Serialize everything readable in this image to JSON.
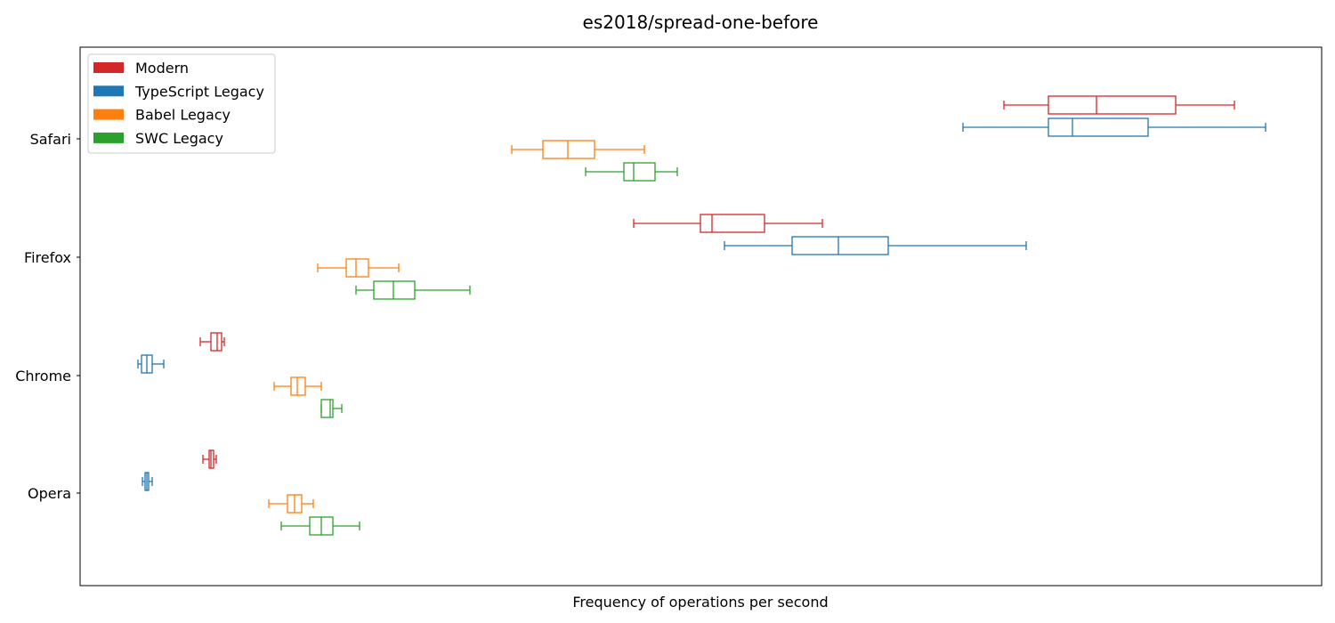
{
  "chart_data": {
    "type": "boxplot",
    "orientation": "horizontal",
    "title": "es2018/spread-one-before",
    "xlabel": "Frequency of operations per second",
    "ylabel": "",
    "x_ticks_visible": false,
    "grid": false,
    "legend_position": "top-left",
    "categories": [
      "Safari",
      "Firefox",
      "Chrome",
      "Opera"
    ],
    "series": [
      {
        "name": "Modern",
        "color": "#d62728",
        "boxes": [
          {
            "category": "Safari",
            "whislo": 1128,
            "q1": 1178,
            "med": 1232,
            "q3": 1321,
            "whishi": 1387
          },
          {
            "category": "Firefox",
            "whislo": 712,
            "q1": 787,
            "med": 800,
            "q3": 859,
            "whishi": 924
          },
          {
            "category": "Chrome",
            "whislo": 225,
            "q1": 237,
            "med": 244,
            "q3": 249,
            "whishi": 252
          },
          {
            "category": "Opera",
            "whislo": 228,
            "q1": 235,
            "med": 237,
            "q3": 240,
            "whishi": 243
          }
        ]
      },
      {
        "name": "TypeScript Legacy",
        "color": "#1f77b4",
        "boxes": [
          {
            "category": "Safari",
            "whislo": 1082,
            "q1": 1178,
            "med": 1205,
            "q3": 1290,
            "whishi": 1422
          },
          {
            "category": "Firefox",
            "whislo": 814,
            "q1": 890,
            "med": 942,
            "q3": 998,
            "whishi": 1153
          },
          {
            "category": "Chrome",
            "whislo": 155,
            "q1": 159,
            "med": 165,
            "q3": 171,
            "whishi": 184
          },
          {
            "category": "Opera",
            "whislo": 160,
            "q1": 163,
            "med": 165,
            "q3": 167,
            "whishi": 171
          }
        ]
      },
      {
        "name": "Babel Legacy",
        "color": "#ff7f0e",
        "boxes": [
          {
            "category": "Safari",
            "whislo": 575,
            "q1": 610,
            "med": 638,
            "q3": 668,
            "whishi": 724
          },
          {
            "category": "Firefox",
            "whislo": 357,
            "q1": 389,
            "med": 400,
            "q3": 414,
            "whishi": 448
          },
          {
            "category": "Chrome",
            "whislo": 308,
            "q1": 327,
            "med": 334,
            "q3": 343,
            "whishi": 361
          },
          {
            "category": "Opera",
            "whislo": 302,
            "q1": 323,
            "med": 331,
            "q3": 339,
            "whishi": 352
          }
        ]
      },
      {
        "name": "SWC Legacy",
        "color": "#2ca02c",
        "boxes": [
          {
            "category": "Safari",
            "whislo": 658,
            "q1": 701,
            "med": 712,
            "q3": 736,
            "whishi": 761
          },
          {
            "category": "Firefox",
            "whislo": 400,
            "q1": 420,
            "med": 442,
            "q3": 466,
            "whishi": 528
          },
          {
            "category": "Chrome",
            "whislo": 361,
            "q1": 361,
            "med": 371,
            "q3": 374,
            "whishi": 384
          },
          {
            "category": "Opera",
            "whislo": 316,
            "q1": 348,
            "med": 361,
            "q3": 374,
            "whishi": 404
          }
        ]
      }
    ]
  }
}
